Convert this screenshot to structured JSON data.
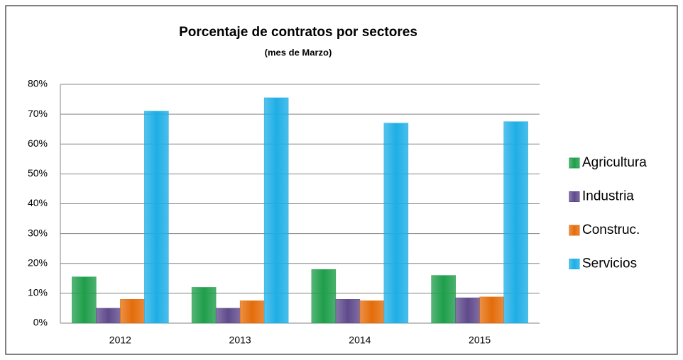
{
  "chart_data": {
    "type": "bar",
    "title": "Porcentaje de contratos por sectores",
    "subtitle": "(mes de Marzo)",
    "categories": [
      "2012",
      "2013",
      "2014",
      "2015"
    ],
    "series": [
      {
        "name": "Agricultura",
        "color": "#1e9e4a",
        "values": [
          15.5,
          12,
          18,
          16
        ]
      },
      {
        "name": "Industria",
        "color": "#5f4a8b",
        "values": [
          5,
          5,
          8,
          8.5
        ]
      },
      {
        "name": "Construc.",
        "color": "#e46c0a",
        "values": [
          8,
          7.5,
          7.5,
          8.8
        ]
      },
      {
        "name": "Servicios",
        "color": "#1eaee6",
        "values": [
          71,
          75.5,
          67,
          67.5
        ]
      }
    ],
    "ylim": [
      0,
      80
    ],
    "yticks": [
      {
        "value": 0,
        "label": "0%"
      },
      {
        "value": 10,
        "label": "10%"
      },
      {
        "value": 20,
        "label": "20%"
      },
      {
        "value": 30,
        "label": "30%"
      },
      {
        "value": 40,
        "label": "40%"
      },
      {
        "value": 50,
        "label": "50%"
      },
      {
        "value": 60,
        "label": "60%"
      },
      {
        "value": 70,
        "label": "70%"
      },
      {
        "value": 80,
        "label": "80%"
      }
    ],
    "grid": true,
    "legend": "right"
  }
}
